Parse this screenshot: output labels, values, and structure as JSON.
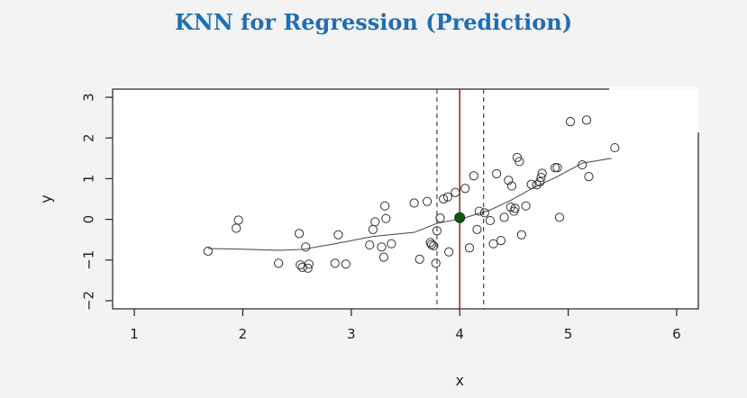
{
  "title": "KNN for Regression (Prediction)",
  "chart_data": {
    "type": "scatter",
    "title": "",
    "xlabel": "x",
    "ylabel": "y",
    "xlim": [
      0.8,
      6.2
    ],
    "ylim": [
      -2.2,
      3.2
    ],
    "x_ticks": [
      1,
      2,
      3,
      4,
      5,
      6
    ],
    "y_ticks": [
      -2,
      -1,
      0,
      1,
      2,
      3
    ],
    "grid": false,
    "colors": {
      "points": "#333333",
      "fit_line": "#555555",
      "query_line": "#8b1a1a",
      "query_point": "#0a5c0a",
      "window_lines": "#444444"
    },
    "points": {
      "x": [
        1.68,
        1.94,
        1.96,
        2.33,
        2.52,
        2.53,
        2.55,
        2.58,
        2.6,
        2.61,
        2.85,
        2.88,
        2.95,
        3.17,
        3.2,
        3.22,
        3.28,
        3.3,
        3.31,
        3.32,
        3.37,
        3.58,
        3.63,
        3.7,
        3.73,
        3.74,
        3.76,
        3.78,
        3.79,
        3.82,
        3.85,
        3.89,
        3.9,
        3.96,
        4.05,
        4.09,
        4.13,
        4.16,
        4.18,
        4.23,
        4.28,
        4.31,
        4.34,
        4.38,
        4.41,
        4.45,
        4.47,
        4.48,
        4.5,
        4.51,
        4.53,
        4.55,
        4.57,
        4.61,
        4.66,
        4.71,
        4.74,
        4.75,
        4.76,
        4.88,
        4.9,
        4.92,
        5.02,
        5.13,
        5.17,
        5.19,
        5.43
      ],
      "y": [
        -0.78,
        -0.22,
        -0.02,
        -1.08,
        -0.35,
        -1.12,
        -1.18,
        -0.68,
        -1.2,
        -1.1,
        -1.08,
        -0.38,
        -1.1,
        -0.63,
        -0.25,
        -0.06,
        -0.68,
        -0.93,
        0.33,
        0.02,
        -0.6,
        0.4,
        -0.98,
        0.44,
        -0.57,
        -0.62,
        -0.65,
        -1.08,
        -0.28,
        0.03,
        0.5,
        0.55,
        -0.8,
        0.66,
        0.76,
        -0.7,
        1.07,
        -0.25,
        0.2,
        0.16,
        -0.03,
        -0.6,
        1.12,
        -0.52,
        0.05,
        0.96,
        0.3,
        0.82,
        0.2,
        0.27,
        1.52,
        1.42,
        -0.38,
        0.33,
        0.86,
        0.85,
        0.92,
        1.03,
        1.13,
        1.27,
        1.27,
        0.05,
        2.4,
        1.34,
        2.44,
        1.05,
        1.76
      ]
    },
    "series": [
      {
        "x": [
          1.68,
          1.94,
          2.33,
          2.55,
          2.85,
          3.2,
          3.58,
          3.79,
          4.05,
          4.28,
          4.48,
          4.66,
          4.9,
          5.13,
          5.4
        ],
        "y": [
          -0.72,
          -0.73,
          -0.76,
          -0.74,
          -0.6,
          -0.42,
          -0.32,
          -0.1,
          0.04,
          0.23,
          0.48,
          0.75,
          1.05,
          1.38,
          1.5
        ]
      }
    ],
    "query_x": 4.0,
    "query_y": 0.04,
    "window": [
      3.79,
      4.22
    ]
  }
}
